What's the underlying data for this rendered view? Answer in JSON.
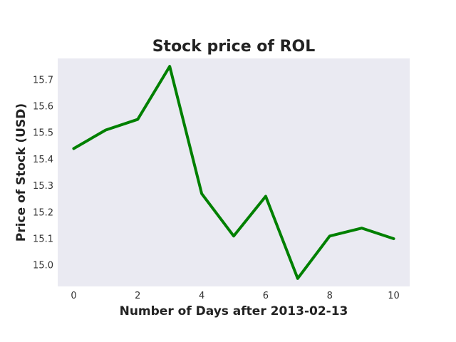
{
  "chart_data": {
    "type": "line",
    "title": "Stock price of ROL",
    "xlabel": "Number of Days after 2013-02-13",
    "ylabel": "Price of Stock (USD)",
    "x": [
      0,
      1,
      2,
      3,
      4,
      5,
      6,
      7,
      8,
      9,
      10
    ],
    "series": [
      {
        "values": [
          15.44,
          15.51,
          15.55,
          15.75,
          15.27,
          15.11,
          15.26,
          14.95,
          15.11,
          15.14,
          15.1
        ]
      }
    ],
    "xticks": [
      0,
      2,
      4,
      6,
      8,
      10
    ],
    "yticks": [
      15.0,
      15.1,
      15.2,
      15.3,
      15.4,
      15.5,
      15.6,
      15.7
    ],
    "xlim": [
      -0.5,
      10.5
    ],
    "ylim": [
      14.92,
      15.78
    ],
    "grid": false,
    "colors": {
      "line": "#008000",
      "plot_background": "#eaeaf2"
    }
  }
}
